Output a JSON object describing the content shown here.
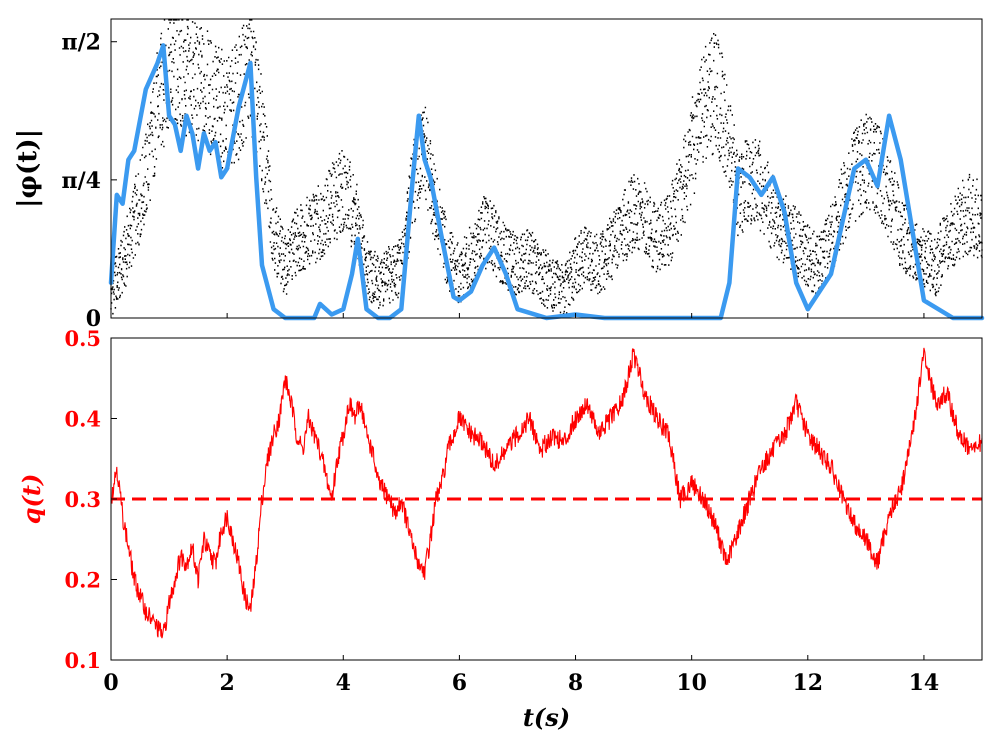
{
  "chart_data": [
    {
      "type": "line",
      "xlabel": "",
      "ylabel": "|φ(t)|",
      "xlim": [
        0,
        15
      ],
      "ylim": [
        0,
        1.7
      ],
      "yticks": [
        {
          "value": 0,
          "label": "0"
        },
        {
          "value": 0.7854,
          "label": "π/4"
        },
        {
          "value": 1.5708,
          "label": "π/2"
        }
      ],
      "grid": false,
      "series": [
        {
          "style": "dense-scatter",
          "color": "#000000",
          "x": [
            0,
            0.2,
            0.4,
            0.6,
            0.8,
            1.0,
            1.2,
            1.4,
            1.6,
            1.8,
            2.0,
            2.2,
            2.4,
            2.6,
            2.8,
            3.0,
            3.2,
            3.4,
            3.6,
            3.8,
            4.0,
            4.2,
            4.4,
            4.6,
            4.8,
            5.0,
            5.2,
            5.4,
            5.6,
            5.8,
            6.0,
            6.2,
            6.4,
            6.6,
            6.8,
            7.0,
            7.2,
            7.4,
            7.6,
            7.8,
            8.0,
            8.2,
            8.4,
            8.6,
            8.8,
            9.0,
            9.2,
            9.4,
            9.6,
            9.8,
            10.0,
            10.2,
            10.4,
            10.6,
            10.8,
            11.0,
            11.2,
            11.4,
            11.6,
            11.8,
            12.0,
            12.2,
            12.4,
            12.6,
            12.8,
            13.0,
            13.2,
            13.4,
            13.6,
            13.8,
            14.0,
            14.2,
            14.4,
            14.6,
            14.8,
            15.0
          ],
          "y": [
            0.15,
            0.3,
            0.55,
            0.8,
            1.2,
            1.45,
            1.4,
            1.35,
            1.3,
            1.25,
            1.15,
            1.25,
            1.45,
            1.05,
            0.5,
            0.3,
            0.45,
            0.5,
            0.55,
            0.65,
            0.75,
            0.6,
            0.3,
            0.2,
            0.25,
            0.3,
            0.75,
            0.95,
            0.6,
            0.35,
            0.25,
            0.35,
            0.5,
            0.45,
            0.35,
            0.3,
            0.35,
            0.25,
            0.2,
            0.15,
            0.3,
            0.35,
            0.3,
            0.4,
            0.5,
            0.6,
            0.55,
            0.45,
            0.5,
            0.7,
            0.95,
            1.2,
            1.3,
            1.1,
            0.7,
            0.8,
            0.75,
            0.6,
            0.5,
            0.45,
            0.35,
            0.3,
            0.45,
            0.65,
            0.8,
            0.9,
            0.85,
            0.7,
            0.5,
            0.4,
            0.35,
            0.3,
            0.45,
            0.55,
            0.6,
            0.55
          ]
        },
        {
          "style": "line",
          "color": "#3b9af0",
          "x": [
            0,
            0.1,
            0.2,
            0.3,
            0.4,
            0.6,
            0.8,
            0.9,
            1.0,
            1.1,
            1.2,
            1.3,
            1.4,
            1.5,
            1.6,
            1.7,
            1.8,
            1.9,
            2.0,
            2.2,
            2.4,
            2.5,
            2.6,
            2.8,
            3.0,
            3.5,
            3.6,
            3.8,
            4.0,
            4.15,
            4.25,
            4.4,
            4.6,
            4.8,
            5.0,
            5.2,
            5.3,
            5.4,
            5.5,
            5.7,
            5.9,
            6.0,
            6.2,
            6.4,
            6.6,
            6.8,
            7.0,
            7.5,
            8.0,
            8.5,
            9.0,
            9.5,
            10.0,
            10.5,
            10.65,
            10.8,
            11.0,
            11.2,
            11.4,
            11.6,
            11.8,
            12.0,
            12.2,
            12.4,
            12.6,
            12.8,
            13.0,
            13.2,
            13.4,
            13.6,
            13.8,
            14.0,
            14.5,
            15.0
          ],
          "y": [
            0.2,
            0.7,
            0.65,
            0.9,
            0.95,
            1.3,
            1.45,
            1.55,
            1.15,
            1.1,
            0.95,
            1.15,
            1.05,
            0.85,
            1.05,
            0.95,
            1.0,
            0.8,
            0.85,
            1.2,
            1.45,
            0.8,
            0.3,
            0.05,
            0.0,
            0.0,
            0.08,
            0.02,
            0.05,
            0.25,
            0.45,
            0.05,
            0.0,
            0.0,
            0.05,
            0.8,
            1.15,
            0.9,
            0.8,
            0.45,
            0.12,
            0.1,
            0.15,
            0.3,
            0.4,
            0.25,
            0.05,
            0.0,
            0.02,
            0.0,
            0.0,
            0.0,
            0.0,
            0.0,
            0.2,
            0.85,
            0.8,
            0.7,
            0.8,
            0.6,
            0.2,
            0.05,
            0.15,
            0.25,
            0.55,
            0.85,
            0.9,
            0.75,
            1.15,
            0.9,
            0.5,
            0.1,
            0.0,
            0.0
          ]
        }
      ]
    },
    {
      "type": "line",
      "xlabel": "t(s)",
      "ylabel": "q(t)",
      "xlim": [
        0,
        15
      ],
      "ylim": [
        0.1,
        0.5
      ],
      "xticks": [
        0,
        2,
        4,
        6,
        8,
        10,
        12,
        14
      ],
      "yticks": [
        0.1,
        0.2,
        0.3,
        0.4,
        0.5
      ],
      "ytick_labels": [
        "0.1",
        "0.2",
        "0.3",
        "0.4",
        "0.5"
      ],
      "xtick_labels": [
        "0",
        "2",
        "4",
        "6",
        "8",
        "10",
        "12",
        "14"
      ],
      "grid": false,
      "series": [
        {
          "style": "line",
          "color": "#ff0000",
          "x": [
            0,
            0.1,
            0.2,
            0.3,
            0.4,
            0.5,
            0.6,
            0.7,
            0.8,
            0.9,
            1.0,
            1.1,
            1.2,
            1.3,
            1.4,
            1.5,
            1.6,
            1.7,
            1.8,
            1.9,
            2.0,
            2.1,
            2.2,
            2.3,
            2.4,
            2.5,
            2.6,
            2.7,
            2.8,
            2.9,
            3.0,
            3.1,
            3.2,
            3.3,
            3.4,
            3.5,
            3.6,
            3.7,
            3.8,
            3.9,
            4.0,
            4.1,
            4.2,
            4.3,
            4.4,
            4.5,
            4.6,
            4.7,
            4.8,
            4.9,
            5.0,
            5.1,
            5.2,
            5.3,
            5.4,
            5.5,
            5.6,
            5.7,
            5.8,
            5.9,
            6.0,
            6.2,
            6.4,
            6.6,
            6.8,
            7.0,
            7.2,
            7.4,
            7.6,
            7.8,
            8.0,
            8.2,
            8.4,
            8.6,
            8.8,
            9.0,
            9.2,
            9.4,
            9.6,
            9.8,
            10.0,
            10.2,
            10.4,
            10.6,
            10.8,
            11.0,
            11.2,
            11.4,
            11.6,
            11.8,
            12.0,
            12.2,
            12.4,
            12.6,
            12.8,
            13.0,
            13.2,
            13.4,
            13.6,
            13.8,
            14.0,
            14.2,
            14.4,
            14.6,
            14.8,
            15.0
          ],
          "y": [
            0.3,
            0.34,
            0.28,
            0.24,
            0.2,
            0.18,
            0.16,
            0.15,
            0.14,
            0.13,
            0.17,
            0.2,
            0.23,
            0.22,
            0.24,
            0.2,
            0.25,
            0.23,
            0.22,
            0.26,
            0.28,
            0.25,
            0.22,
            0.18,
            0.16,
            0.22,
            0.3,
            0.35,
            0.38,
            0.4,
            0.45,
            0.42,
            0.38,
            0.36,
            0.4,
            0.38,
            0.36,
            0.33,
            0.3,
            0.35,
            0.38,
            0.42,
            0.4,
            0.42,
            0.38,
            0.36,
            0.32,
            0.31,
            0.3,
            0.28,
            0.3,
            0.27,
            0.24,
            0.22,
            0.21,
            0.25,
            0.3,
            0.32,
            0.36,
            0.38,
            0.4,
            0.38,
            0.37,
            0.34,
            0.36,
            0.38,
            0.4,
            0.36,
            0.38,
            0.37,
            0.4,
            0.42,
            0.38,
            0.4,
            0.42,
            0.48,
            0.43,
            0.4,
            0.38,
            0.3,
            0.32,
            0.3,
            0.27,
            0.22,
            0.26,
            0.3,
            0.34,
            0.36,
            0.38,
            0.42,
            0.38,
            0.36,
            0.34,
            0.3,
            0.27,
            0.25,
            0.22,
            0.28,
            0.31,
            0.38,
            0.48,
            0.42,
            0.43,
            0.38,
            0.36,
            0.37
          ]
        },
        {
          "style": "dashed",
          "color": "#ff0000",
          "x": [
            0,
            15
          ],
          "y": [
            0.3,
            0.3
          ]
        }
      ]
    }
  ]
}
